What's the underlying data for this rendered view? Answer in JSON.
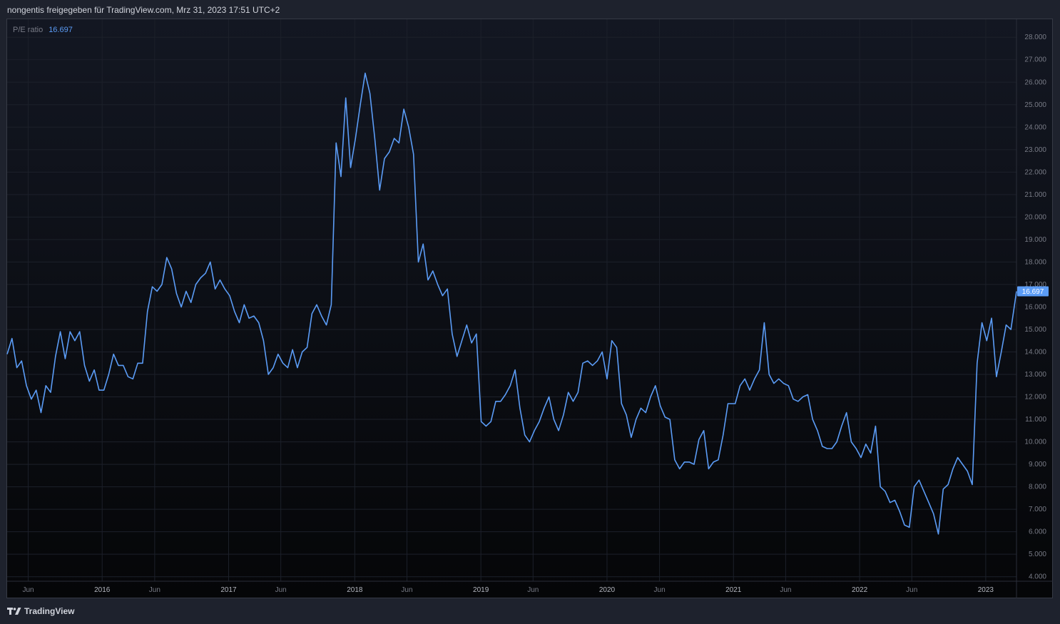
{
  "header": {
    "share_text": "nongentis freigegeben für TradingView.com, Mrz 31, 2023 17:51 UTC+2"
  },
  "legend": {
    "name": "P/E ratio",
    "value": "16.697"
  },
  "footer": {
    "brand": "TradingView"
  },
  "colors": {
    "line": "#5b9cf6",
    "grid": "#1c202a",
    "axis_text": "#787b86",
    "badge_bg": "#5b9cf6"
  },
  "chart_data": {
    "type": "line",
    "series": [
      {
        "name": "P/E ratio",
        "last_value": 16.697,
        "points": [
          [
            "2015-04-01",
            13.9
          ],
          [
            "2015-04-15",
            14.6
          ],
          [
            "2015-04-29",
            13.3
          ],
          [
            "2015-05-13",
            13.6
          ],
          [
            "2015-05-27",
            12.5
          ],
          [
            "2015-06-10",
            11.9
          ],
          [
            "2015-06-24",
            12.3
          ],
          [
            "2015-07-08",
            11.3
          ],
          [
            "2015-07-22",
            12.5
          ],
          [
            "2015-08-05",
            12.2
          ],
          [
            "2015-08-19",
            13.8
          ],
          [
            "2015-09-02",
            14.9
          ],
          [
            "2015-09-16",
            13.7
          ],
          [
            "2015-09-30",
            14.9
          ],
          [
            "2015-10-14",
            14.5
          ],
          [
            "2015-10-28",
            14.9
          ],
          [
            "2015-11-11",
            13.4
          ],
          [
            "2015-11-25",
            12.7
          ],
          [
            "2015-12-09",
            13.2
          ],
          [
            "2015-12-23",
            12.3
          ],
          [
            "2016-01-06",
            12.3
          ],
          [
            "2016-01-20",
            13.0
          ],
          [
            "2016-02-03",
            13.9
          ],
          [
            "2016-02-17",
            13.4
          ],
          [
            "2016-03-02",
            13.4
          ],
          [
            "2016-03-16",
            12.9
          ],
          [
            "2016-03-30",
            12.8
          ],
          [
            "2016-04-13",
            13.5
          ],
          [
            "2016-04-27",
            13.5
          ],
          [
            "2016-05-11",
            15.8
          ],
          [
            "2016-05-25",
            16.9
          ],
          [
            "2016-06-08",
            16.7
          ],
          [
            "2016-06-22",
            17.0
          ],
          [
            "2016-07-06",
            18.2
          ],
          [
            "2016-07-20",
            17.7
          ],
          [
            "2016-08-03",
            16.6
          ],
          [
            "2016-08-17",
            16.0
          ],
          [
            "2016-08-31",
            16.7
          ],
          [
            "2016-09-14",
            16.2
          ],
          [
            "2016-09-28",
            17.0
          ],
          [
            "2016-10-12",
            17.3
          ],
          [
            "2016-10-26",
            17.5
          ],
          [
            "2016-11-09",
            18.0
          ],
          [
            "2016-11-23",
            16.8
          ],
          [
            "2016-12-07",
            17.2
          ],
          [
            "2016-12-21",
            16.8
          ],
          [
            "2017-01-04",
            16.5
          ],
          [
            "2017-01-18",
            15.8
          ],
          [
            "2017-02-01",
            15.3
          ],
          [
            "2017-02-15",
            16.1
          ],
          [
            "2017-03-01",
            15.5
          ],
          [
            "2017-03-15",
            15.6
          ],
          [
            "2017-03-29",
            15.3
          ],
          [
            "2017-04-12",
            14.5
          ],
          [
            "2017-04-26",
            13.0
          ],
          [
            "2017-05-10",
            13.3
          ],
          [
            "2017-05-24",
            13.9
          ],
          [
            "2017-06-07",
            13.5
          ],
          [
            "2017-06-21",
            13.3
          ],
          [
            "2017-07-05",
            14.1
          ],
          [
            "2017-07-19",
            13.3
          ],
          [
            "2017-08-02",
            14.0
          ],
          [
            "2017-08-16",
            14.2
          ],
          [
            "2017-08-30",
            15.7
          ],
          [
            "2017-09-13",
            16.1
          ],
          [
            "2017-09-27",
            15.6
          ],
          [
            "2017-10-11",
            15.2
          ],
          [
            "2017-10-25",
            16.1
          ],
          [
            "2017-11-08",
            23.3
          ],
          [
            "2017-11-22",
            21.8
          ],
          [
            "2017-12-06",
            25.3
          ],
          [
            "2017-12-20",
            22.2
          ],
          [
            "2018-01-03",
            23.5
          ],
          [
            "2018-01-17",
            25.0
          ],
          [
            "2018-01-31",
            26.4
          ],
          [
            "2018-02-14",
            25.5
          ],
          [
            "2018-02-28",
            23.5
          ],
          [
            "2018-03-14",
            21.2
          ],
          [
            "2018-03-28",
            22.6
          ],
          [
            "2018-04-11",
            22.9
          ],
          [
            "2018-04-25",
            23.5
          ],
          [
            "2018-05-09",
            23.3
          ],
          [
            "2018-05-23",
            24.8
          ],
          [
            "2018-06-06",
            24.0
          ],
          [
            "2018-06-20",
            22.8
          ],
          [
            "2018-07-04",
            18.0
          ],
          [
            "2018-07-18",
            18.8
          ],
          [
            "2018-08-01",
            17.2
          ],
          [
            "2018-08-15",
            17.6
          ],
          [
            "2018-08-29",
            17.0
          ],
          [
            "2018-09-12",
            16.5
          ],
          [
            "2018-09-26",
            16.8
          ],
          [
            "2018-10-10",
            14.8
          ],
          [
            "2018-10-24",
            13.8
          ],
          [
            "2018-11-07",
            14.5
          ],
          [
            "2018-11-21",
            15.2
          ],
          [
            "2018-12-05",
            14.4
          ],
          [
            "2018-12-19",
            14.8
          ],
          [
            "2019-01-02",
            10.9
          ],
          [
            "2019-01-16",
            10.7
          ],
          [
            "2019-01-30",
            10.9
          ],
          [
            "2019-02-13",
            11.8
          ],
          [
            "2019-02-27",
            11.8
          ],
          [
            "2019-03-13",
            12.1
          ],
          [
            "2019-03-27",
            12.5
          ],
          [
            "2019-04-10",
            13.2
          ],
          [
            "2019-04-24",
            11.5
          ],
          [
            "2019-05-08",
            10.3
          ],
          [
            "2019-05-22",
            10.0
          ],
          [
            "2019-06-05",
            10.5
          ],
          [
            "2019-06-19",
            10.9
          ],
          [
            "2019-07-03",
            11.5
          ],
          [
            "2019-07-17",
            12.0
          ],
          [
            "2019-07-31",
            11.0
          ],
          [
            "2019-08-14",
            10.5
          ],
          [
            "2019-08-28",
            11.2
          ],
          [
            "2019-09-11",
            12.2
          ],
          [
            "2019-09-25",
            11.8
          ],
          [
            "2019-10-09",
            12.2
          ],
          [
            "2019-10-23",
            13.5
          ],
          [
            "2019-11-06",
            13.6
          ],
          [
            "2019-11-20",
            13.4
          ],
          [
            "2019-12-04",
            13.6
          ],
          [
            "2019-12-18",
            14.0
          ],
          [
            "2020-01-01",
            12.8
          ],
          [
            "2020-01-15",
            14.5
          ],
          [
            "2020-01-29",
            14.2
          ],
          [
            "2020-02-12",
            11.7
          ],
          [
            "2020-02-26",
            11.2
          ],
          [
            "2020-03-11",
            10.2
          ],
          [
            "2020-03-25",
            11.0
          ],
          [
            "2020-04-08",
            11.5
          ],
          [
            "2020-04-22",
            11.3
          ],
          [
            "2020-05-06",
            12.0
          ],
          [
            "2020-05-20",
            12.5
          ],
          [
            "2020-06-03",
            11.6
          ],
          [
            "2020-06-17",
            11.1
          ],
          [
            "2020-07-01",
            11.0
          ],
          [
            "2020-07-15",
            9.2
          ],
          [
            "2020-07-29",
            8.8
          ],
          [
            "2020-08-12",
            9.1
          ],
          [
            "2020-08-26",
            9.1
          ],
          [
            "2020-09-09",
            9.0
          ],
          [
            "2020-09-23",
            10.1
          ],
          [
            "2020-10-07",
            10.5
          ],
          [
            "2020-10-21",
            8.8
          ],
          [
            "2020-11-04",
            9.1
          ],
          [
            "2020-11-18",
            9.2
          ],
          [
            "2020-12-02",
            10.3
          ],
          [
            "2020-12-16",
            11.7
          ],
          [
            "2021-01-06",
            11.7
          ],
          [
            "2021-01-20",
            12.5
          ],
          [
            "2021-02-03",
            12.8
          ],
          [
            "2021-02-17",
            12.3
          ],
          [
            "2021-03-03",
            12.8
          ],
          [
            "2021-03-17",
            13.2
          ],
          [
            "2021-03-31",
            15.3
          ],
          [
            "2021-04-14",
            13.0
          ],
          [
            "2021-04-28",
            12.6
          ],
          [
            "2021-05-12",
            12.8
          ],
          [
            "2021-05-26",
            12.6
          ],
          [
            "2021-06-09",
            12.5
          ],
          [
            "2021-06-23",
            11.9
          ],
          [
            "2021-07-07",
            11.8
          ],
          [
            "2021-07-21",
            12.0
          ],
          [
            "2021-08-04",
            12.1
          ],
          [
            "2021-08-18",
            11.0
          ],
          [
            "2021-09-01",
            10.5
          ],
          [
            "2021-09-15",
            9.8
          ],
          [
            "2021-09-29",
            9.7
          ],
          [
            "2021-10-13",
            9.7
          ],
          [
            "2021-10-27",
            10.0
          ],
          [
            "2021-11-10",
            10.7
          ],
          [
            "2021-11-24",
            11.3
          ],
          [
            "2021-12-08",
            10.0
          ],
          [
            "2021-12-22",
            9.7
          ],
          [
            "2022-01-05",
            9.3
          ],
          [
            "2022-01-19",
            9.9
          ],
          [
            "2022-02-02",
            9.5
          ],
          [
            "2022-02-16",
            10.7
          ],
          [
            "2022-03-02",
            8.0
          ],
          [
            "2022-03-16",
            7.8
          ],
          [
            "2022-03-30",
            7.3
          ],
          [
            "2022-04-13",
            7.4
          ],
          [
            "2022-04-27",
            6.9
          ],
          [
            "2022-05-11",
            6.3
          ],
          [
            "2022-05-25",
            6.2
          ],
          [
            "2022-06-08",
            8.0
          ],
          [
            "2022-06-22",
            8.3
          ],
          [
            "2022-07-06",
            7.8
          ],
          [
            "2022-07-20",
            7.3
          ],
          [
            "2022-08-03",
            6.8
          ],
          [
            "2022-08-17",
            5.9
          ],
          [
            "2022-08-31",
            7.9
          ],
          [
            "2022-09-14",
            8.1
          ],
          [
            "2022-09-28",
            8.8
          ],
          [
            "2022-10-12",
            9.3
          ],
          [
            "2022-10-26",
            9.0
          ],
          [
            "2022-11-09",
            8.7
          ],
          [
            "2022-11-23",
            8.1
          ],
          [
            "2022-12-07",
            13.5
          ],
          [
            "2022-12-21",
            15.3
          ],
          [
            "2023-01-04",
            14.5
          ],
          [
            "2023-01-18",
            15.5
          ],
          [
            "2023-02-01",
            12.9
          ],
          [
            "2023-02-15",
            14.0
          ],
          [
            "2023-03-01",
            15.2
          ],
          [
            "2023-03-15",
            15.0
          ],
          [
            "2023-03-31",
            16.697
          ]
        ]
      }
    ],
    "y_axis": {
      "ticks": [
        "4.000",
        "5.000",
        "6.000",
        "7.000",
        "8.000",
        "9.000",
        "10.000",
        "11.000",
        "12.000",
        "13.000",
        "14.000",
        "15.000",
        "16.000",
        "17.000",
        "18.000",
        "19.000",
        "20.000",
        "21.000",
        "22.000",
        "23.000",
        "24.000",
        "25.000",
        "26.000",
        "27.000",
        "28.000"
      ],
      "range": [
        3.8,
        28.8
      ],
      "position": "right"
    },
    "x_axis": {
      "ticks": [
        [
          "2015-06-01",
          "Jun"
        ],
        [
          "2016-01-01",
          "2016"
        ],
        [
          "2016-06-01",
          "Jun"
        ],
        [
          "2017-01-01",
          "2017"
        ],
        [
          "2017-06-01",
          "Jun"
        ],
        [
          "2018-01-01",
          "2018"
        ],
        [
          "2018-06-01",
          "Jun"
        ],
        [
          "2019-01-01",
          "2019"
        ],
        [
          "2019-06-01",
          "Jun"
        ],
        [
          "2020-01-01",
          "2020"
        ],
        [
          "2020-06-01",
          "Jun"
        ],
        [
          "2021-01-01",
          "2021"
        ],
        [
          "2021-06-01",
          "Jun"
        ],
        [
          "2022-01-01",
          "2022"
        ],
        [
          "2022-06-01",
          "Jun"
        ],
        [
          "2023-01-01",
          "2023"
        ]
      ]
    },
    "grid": true,
    "last_value_label": "16.697"
  }
}
